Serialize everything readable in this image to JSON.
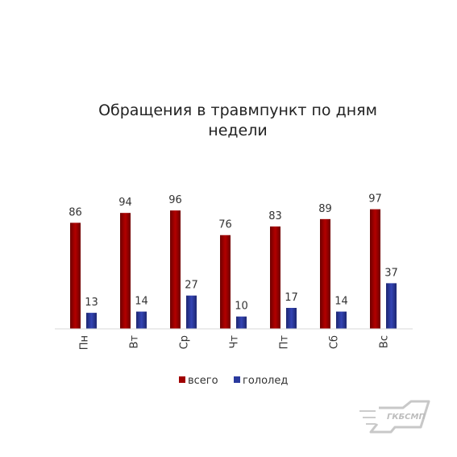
{
  "chart_data": {
    "type": "bar",
    "title": "Обращения в травмпункт по дням недели",
    "title_lines": [
      "Обращения в травмпункт по дням",
      "недели"
    ],
    "categories": [
      "Пн",
      "Вт",
      "Ср",
      "Чт",
      "Пт",
      "Сб",
      "Вс"
    ],
    "series": [
      {
        "name": "всего",
        "values": [
          86,
          94,
          96,
          76,
          83,
          89,
          97
        ],
        "color": "#a00000"
      },
      {
        "name": "гололед",
        "values": [
          13,
          14,
          27,
          10,
          17,
          14,
          37
        ],
        "color": "#2a3a9e"
      }
    ],
    "ylim": [
      0,
      100
    ],
    "grid": false,
    "legend_position": "bottom"
  },
  "logo": {
    "text": "ГКБСМП",
    "color": "#bdbdbd"
  }
}
